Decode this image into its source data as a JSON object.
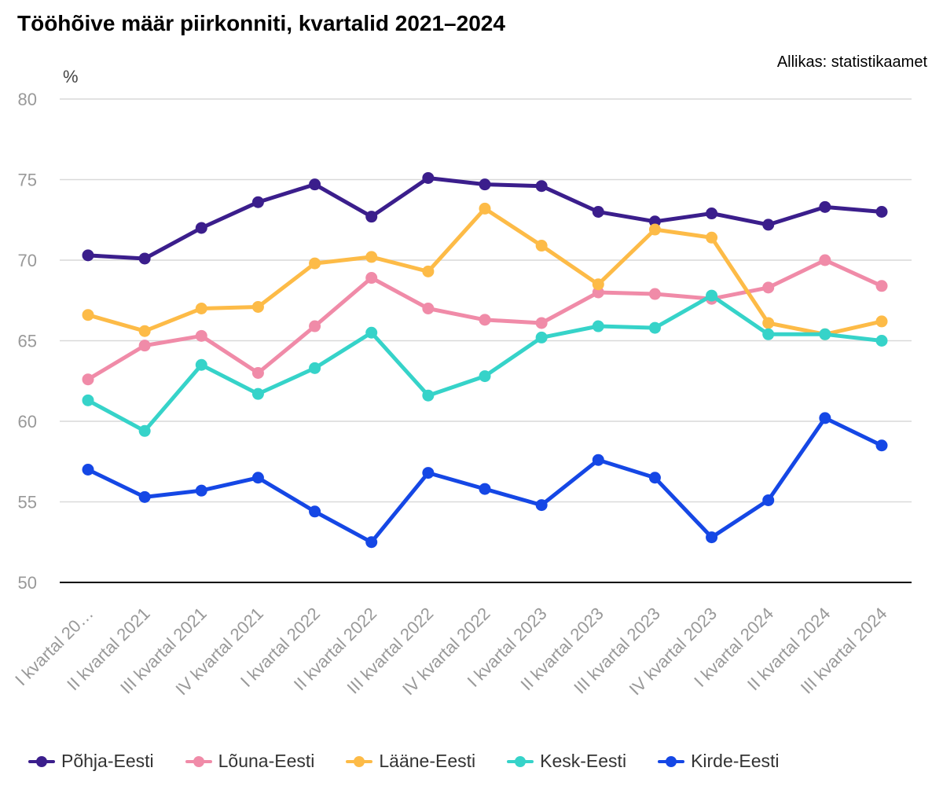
{
  "header": {
    "title": "Tööhõive määr piirkonniti, kvartalid 2021–2024",
    "source": "Allikas: statistikaamet"
  },
  "chart_data": {
    "type": "line",
    "title": "Tööhõive määr piirkonniti, kvartalid 2021–2024",
    "ylabel": "%",
    "xlabel": "",
    "ylim": [
      50,
      80
    ],
    "yticks": [
      50,
      55,
      60,
      65,
      70,
      75,
      80
    ],
    "grid": true,
    "legend_position": "bottom",
    "categories": [
      "I kvartal 20…",
      "II kvartal 2021",
      "III kvartal 2021",
      "IV kvartal 2021",
      "I kvartal 2022",
      "II kvartal 2022",
      "III kvartal 2022",
      "IV kvartal 2022",
      "I kvartal 2023",
      "II kvartal 2023",
      "III kvartal 2023",
      "IV kvartal 2023",
      "I kvartal 2024",
      "II kvartal 2024",
      "III kvartal 2024"
    ],
    "series": [
      {
        "name": "Põhja-Eesti",
        "color": "#3b1e8c",
        "values": [
          70.3,
          70.1,
          72.0,
          73.6,
          74.7,
          72.7,
          75.1,
          74.7,
          74.6,
          73.0,
          72.4,
          72.9,
          72.2,
          73.3,
          73.0
        ]
      },
      {
        "name": "Lõuna-Eesti",
        "color": "#f08ba8",
        "values": [
          62.6,
          64.7,
          65.3,
          63.0,
          65.9,
          68.9,
          67.0,
          66.3,
          66.1,
          68.0,
          67.9,
          67.6,
          68.3,
          70.0,
          68.4
        ]
      },
      {
        "name": "Lääne-Eesti",
        "color": "#fdbb47",
        "values": [
          66.6,
          65.6,
          67.0,
          67.1,
          69.8,
          70.2,
          69.3,
          73.2,
          70.9,
          68.5,
          71.9,
          71.4,
          66.1,
          65.4,
          66.2
        ]
      },
      {
        "name": "Kesk-Eesti",
        "color": "#36d3c9",
        "values": [
          61.3,
          59.4,
          63.5,
          61.7,
          63.3,
          65.5,
          61.6,
          62.8,
          65.2,
          65.9,
          65.8,
          67.8,
          65.4,
          65.4,
          65.0
        ]
      },
      {
        "name": "Kirde-Eesti",
        "color": "#1547e5",
        "values": [
          57.0,
          55.3,
          55.7,
          56.5,
          54.4,
          52.5,
          56.8,
          55.8,
          54.8,
          57.6,
          56.5,
          52.8,
          55.1,
          60.2,
          58.5
        ]
      }
    ]
  }
}
